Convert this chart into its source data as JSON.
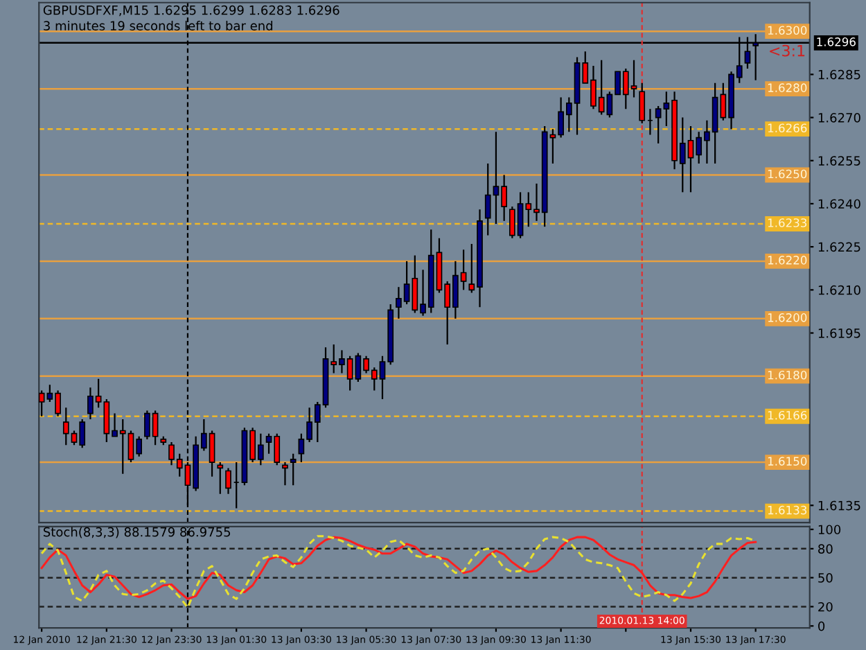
{
  "chart_data": [
    {
      "type": "candlestick",
      "title": "GBPUSDFXF,M15 1.6295 1.6299 1.6283 1.6296",
      "subtitle": "3 minutes 19 seconds left to bar end",
      "annotations": [
        "<3:1"
      ],
      "x": [
        "2010-01-12T19:30",
        "2010-01-12T19:45",
        "2010-01-12T20:00",
        "2010-01-12T20:15",
        "2010-01-12T20:30",
        "2010-01-12T20:45",
        "2010-01-12T21:00",
        "2010-01-12T21:15",
        "2010-01-12T21:30",
        "2010-01-12T21:45",
        "2010-01-12T22:00",
        "2010-01-12T22:15",
        "2010-01-12T22:30",
        "2010-01-12T22:45",
        "2010-01-12T23:00",
        "2010-01-12T23:15",
        "2010-01-12T23:30",
        "2010-01-12T23:45",
        "2010-01-13T00:00",
        "2010-01-13T00:15",
        "2010-01-13T00:30",
        "2010-01-13T00:45",
        "2010-01-13T01:00",
        "2010-01-13T01:15",
        "2010-01-13T01:30",
        "2010-01-13T01:45",
        "2010-01-13T02:00",
        "2010-01-13T02:15",
        "2010-01-13T02:30",
        "2010-01-13T02:45",
        "2010-01-13T03:00",
        "2010-01-13T03:15",
        "2010-01-13T03:30",
        "2010-01-13T03:45",
        "2010-01-13T04:00",
        "2010-01-13T04:15",
        "2010-01-13T04:30",
        "2010-01-13T04:45",
        "2010-01-13T05:00",
        "2010-01-13T05:15",
        "2010-01-13T05:30",
        "2010-01-13T05:45",
        "2010-01-13T06:00",
        "2010-01-13T06:15",
        "2010-01-13T06:30",
        "2010-01-13T06:45",
        "2010-01-13T07:00",
        "2010-01-13T07:15",
        "2010-01-13T07:30",
        "2010-01-13T07:45",
        "2010-01-13T08:00",
        "2010-01-13T08:15",
        "2010-01-13T08:30",
        "2010-01-13T08:45",
        "2010-01-13T09:00",
        "2010-01-13T09:15",
        "2010-01-13T09:30",
        "2010-01-13T09:45",
        "2010-01-13T10:00",
        "2010-01-13T10:15",
        "2010-01-13T10:30",
        "2010-01-13T10:45",
        "2010-01-13T11:00",
        "2010-01-13T11:15",
        "2010-01-13T11:30",
        "2010-01-13T11:45",
        "2010-01-13T12:00",
        "2010-01-13T12:15",
        "2010-01-13T12:30",
        "2010-01-13T12:45",
        "2010-01-13T13:00",
        "2010-01-13T13:15",
        "2010-01-13T13:30",
        "2010-01-13T13:45",
        "2010-01-13T14:00",
        "2010-01-13T14:15",
        "2010-01-13T14:30",
        "2010-01-13T14:45",
        "2010-01-13T15:00",
        "2010-01-13T15:15",
        "2010-01-13T15:30",
        "2010-01-13T15:45",
        "2010-01-13T16:00",
        "2010-01-13T16:15",
        "2010-01-13T16:30",
        "2010-01-13T16:45",
        "2010-01-13T17:00",
        "2010-01-13T17:15",
        "2010-01-13T17:30"
      ],
      "ohlc": [
        [
          1.6174,
          1.6175,
          1.6166,
          1.6171
        ],
        [
          1.6172,
          1.6177,
          1.6171,
          1.6174
        ],
        [
          1.6174,
          1.6175,
          1.6166,
          1.6167
        ],
        [
          1.6164,
          1.6169,
          1.6156,
          1.616
        ],
        [
          1.616,
          1.6161,
          1.6156,
          1.6157
        ],
        [
          1.6156,
          1.6165,
          1.6155,
          1.6164
        ],
        [
          1.6167,
          1.6176,
          1.6165,
          1.6173
        ],
        [
          1.6173,
          1.6179,
          1.6169,
          1.6171
        ],
        [
          1.6171,
          1.6172,
          1.6157,
          1.616
        ],
        [
          1.6159,
          1.6167,
          1.6159,
          1.6161
        ],
        [
          1.6161,
          1.6165,
          1.6146,
          1.616
        ],
        [
          1.616,
          1.6161,
          1.615,
          1.6151
        ],
        [
          1.6153,
          1.6159,
          1.6152,
          1.6158
        ],
        [
          1.6159,
          1.6168,
          1.6158,
          1.6167
        ],
        [
          1.6167,
          1.6168,
          1.6156,
          1.6159
        ],
        [
          1.6158,
          1.6159,
          1.6156,
          1.6157
        ],
        [
          1.6156,
          1.6157,
          1.6149,
          1.6151
        ],
        [
          1.6151,
          1.6153,
          1.6145,
          1.6148
        ],
        [
          1.6149,
          1.615,
          1.6135,
          1.6142
        ],
        [
          1.6141,
          1.6159,
          1.614,
          1.6156
        ],
        [
          1.6155,
          1.6165,
          1.6154,
          1.616
        ],
        [
          1.616,
          1.6161,
          1.6145,
          1.615
        ],
        [
          1.6149,
          1.615,
          1.6139,
          1.6148
        ],
        [
          1.6147,
          1.6148,
          1.6139,
          1.6141
        ],
        [
          1.6143,
          1.615,
          1.6134,
          1.6143
        ],
        [
          1.6143,
          1.6162,
          1.6142,
          1.6161
        ],
        [
          1.6161,
          1.6162,
          1.615,
          1.6151
        ],
        [
          1.6151,
          1.616,
          1.6149,
          1.6156
        ],
        [
          1.6157,
          1.616,
          1.6153,
          1.6159
        ],
        [
          1.6159,
          1.616,
          1.6149,
          1.615
        ],
        [
          1.6149,
          1.615,
          1.6142,
          1.6148
        ],
        [
          1.615,
          1.6153,
          1.6142,
          1.6151
        ],
        [
          1.6153,
          1.616,
          1.615,
          1.6158
        ],
        [
          1.6158,
          1.6169,
          1.6157,
          1.6164
        ],
        [
          1.6164,
          1.6171,
          1.6157,
          1.617
        ],
        [
          1.617,
          1.619,
          1.6169,
          1.6186
        ],
        [
          1.6185,
          1.6191,
          1.6181,
          1.6184
        ],
        [
          1.6184,
          1.6189,
          1.6181,
          1.6186
        ],
        [
          1.6186,
          1.6187,
          1.6175,
          1.6179
        ],
        [
          1.6179,
          1.6188,
          1.6178,
          1.6187
        ],
        [
          1.6186,
          1.6187,
          1.6181,
          1.6182
        ],
        [
          1.6182,
          1.6183,
          1.6175,
          1.6179
        ],
        [
          1.6179,
          1.6187,
          1.6172,
          1.6185
        ],
        [
          1.6185,
          1.6205,
          1.6184,
          1.6203
        ],
        [
          1.6204,
          1.6211,
          1.62,
          1.6207
        ],
        [
          1.6206,
          1.622,
          1.6205,
          1.6212
        ],
        [
          1.6214,
          1.6222,
          1.6202,
          1.6203
        ],
        [
          1.6202,
          1.6217,
          1.6201,
          1.6205
        ],
        [
          1.6204,
          1.6231,
          1.6202,
          1.6222
        ],
        [
          1.6223,
          1.6228,
          1.6209,
          1.621
        ],
        [
          1.6212,
          1.6213,
          1.6191,
          1.6204
        ],
        [
          1.6204,
          1.622,
          1.62,
          1.6215
        ],
        [
          1.6216,
          1.6224,
          1.621,
          1.6213
        ],
        [
          1.6212,
          1.6226,
          1.6209,
          1.621
        ],
        [
          1.6211,
          1.6238,
          1.6204,
          1.6234
        ],
        [
          1.6235,
          1.6254,
          1.6229,
          1.6243
        ],
        [
          1.6243,
          1.6265,
          1.6233,
          1.6246
        ],
        [
          1.6246,
          1.625,
          1.6234,
          1.6239
        ],
        [
          1.6238,
          1.6239,
          1.6228,
          1.6229
        ],
        [
          1.6229,
          1.6244,
          1.6228,
          1.624
        ],
        [
          1.624,
          1.6244,
          1.6232,
          1.6238
        ],
        [
          1.6238,
          1.6247,
          1.6234,
          1.6237
        ],
        [
          1.6237,
          1.6267,
          1.6232,
          1.6265
        ],
        [
          1.6264,
          1.6266,
          1.6254,
          1.6263
        ],
        [
          1.6264,
          1.6277,
          1.6263,
          1.6272
        ],
        [
          1.6271,
          1.6277,
          1.6265,
          1.6275
        ],
        [
          1.6275,
          1.6291,
          1.6264,
          1.6289
        ],
        [
          1.6289,
          1.6293,
          1.6282,
          1.6282
        ],
        [
          1.6283,
          1.6288,
          1.6273,
          1.6274
        ],
        [
          1.6277,
          1.629,
          1.6271,
          1.6272
        ],
        [
          1.6271,
          1.6279,
          1.627,
          1.6278
        ],
        [
          1.6278,
          1.6286,
          1.6278,
          1.6286
        ],
        [
          1.6286,
          1.6287,
          1.6273,
          1.6278
        ],
        [
          1.6281,
          1.629,
          1.6277,
          1.628
        ],
        [
          1.6279,
          1.6282,
          1.6268,
          1.6269
        ],
        [
          1.6269,
          1.6273,
          1.6264,
          1.6269
        ],
        [
          1.627,
          1.6274,
          1.6261,
          1.6273
        ],
        [
          1.6273,
          1.6279,
          1.6267,
          1.6275
        ],
        [
          1.6276,
          1.6279,
          1.6252,
          1.6255
        ],
        [
          1.6254,
          1.627,
          1.6244,
          1.6261
        ],
        [
          1.6262,
          1.6267,
          1.6244,
          1.6256
        ],
        [
          1.6257,
          1.6265,
          1.6254,
          1.6263
        ],
        [
          1.6262,
          1.6269,
          1.6254,
          1.6265
        ],
        [
          1.6265,
          1.6282,
          1.6254,
          1.6277
        ],
        [
          1.6278,
          1.6282,
          1.6269,
          1.627
        ],
        [
          1.627,
          1.6286,
          1.6266,
          1.6285
        ],
        [
          1.6284,
          1.6298,
          1.6282,
          1.6288
        ],
        [
          1.6289,
          1.6298,
          1.6287,
          1.6293
        ],
        [
          1.6295,
          1.6299,
          1.6283,
          1.6296
        ]
      ],
      "colors": [
        "#ff0000",
        "#000080",
        "#ff0000",
        "#ff0000",
        "#ff0000",
        "#000080",
        "#000080",
        "#ff0000",
        "#ff0000",
        "#000080",
        "#ff0000",
        "#ff0000",
        "#000080",
        "#000080",
        "#ff0000",
        "#ff0000",
        "#ff0000",
        "#ff0000",
        "#ff0000",
        "#000080",
        "#000080",
        "#ff0000",
        "#ff0000",
        "#ff0000",
        "#000000",
        "#000080",
        "#ff0000",
        "#000080",
        "#000080",
        "#ff0000",
        "#ff0000",
        "#000080",
        "#000080",
        "#000080",
        "#000080",
        "#000080",
        "#ff0000",
        "#000080",
        "#ff0000",
        "#000080",
        "#ff0000",
        "#ff0000",
        "#000080",
        "#000080",
        "#000080",
        "#000080",
        "#ff0000",
        "#000080",
        "#000080",
        "#ff0000",
        "#ff0000",
        "#000080",
        "#ff0000",
        "#ff0000",
        "#000080",
        "#000080",
        "#000080",
        "#ff0000",
        "#ff0000",
        "#000080",
        "#ff0000",
        "#ff0000",
        "#000080",
        "#ff0000",
        "#000080",
        "#000080",
        "#000080",
        "#ff0000",
        "#ff0000",
        "#ff0000",
        "#000080",
        "#000080",
        "#ff0000",
        "#ff0000",
        "#ff0000",
        "#000000",
        "#000080",
        "#000080",
        "#ff0000",
        "#000080",
        "#ff0000",
        "#000080",
        "#000080",
        "#000080",
        "#ff0000",
        "#000080",
        "#000080",
        "#000080",
        "#000080"
      ],
      "xlim": [
        "2010-01-12T19:25",
        "2010-01-13T19:10"
      ],
      "ylim": [
        1.6129,
        1.631
      ],
      "yticks": [
        1.6135,
        1.6195,
        {
          "value": 1.621,
          "label": "1.6210"
        },
        1.6225,
        {
          "value": 1.624,
          "label": "1.6240"
        },
        1.6255,
        {
          "value": 1.627,
          "label": "1.6270"
        },
        1.6285
      ],
      "tick_labels": "y",
      "ref_lines": [
        {
          "axis": "y",
          "value": 1.63,
          "label": "1.6300",
          "color": "#e8a040",
          "line_style": "solid"
        },
        {
          "axis": "y",
          "value": 1.6296,
          "label": "1.6296",
          "color": "#000000",
          "line_style": "solid"
        },
        {
          "axis": "y",
          "value": 1.628,
          "label": "1.6280",
          "color": "#e8a040",
          "line_style": "solid"
        },
        {
          "axis": "y",
          "value": 1.6266,
          "label": "1.6266",
          "color": "#f0b828",
          "line_style": "dashed"
        },
        {
          "axis": "y",
          "value": 1.625,
          "label": "1.6250",
          "color": "#e8a040",
          "line_style": "solid"
        },
        {
          "axis": "y",
          "value": 1.6233,
          "label": "1.6233",
          "color": "#f0b828",
          "line_style": "dashed"
        },
        {
          "axis": "y",
          "value": 1.622,
          "label": "1.6220",
          "color": "#e8a040",
          "line_style": "solid"
        },
        {
          "axis": "y",
          "value": 1.62,
          "label": "1.6200",
          "color": "#e8a040",
          "line_style": "solid"
        },
        {
          "axis": "y",
          "value": 1.618,
          "label": "1.6180",
          "color": "#e8a040",
          "line_style": "solid"
        },
        {
          "axis": "y",
          "value": 1.6166,
          "label": "1.6166",
          "color": "#f0b828",
          "line_style": "dashed"
        },
        {
          "axis": "y",
          "value": 1.615,
          "label": "1.6150",
          "color": "#e8a040",
          "line_style": "solid"
        },
        {
          "axis": "y",
          "value": 1.6133,
          "label": "1.6133",
          "color": "#f0b828",
          "line_style": "dashed"
        },
        {
          "axis": "x",
          "value": "2010-01-13T00:00",
          "color": "#000000",
          "line_style": "dashed"
        },
        {
          "axis": "x",
          "value": "2010-01-13T14:00",
          "color": "#e03030",
          "line_style": "dashed"
        }
      ]
    },
    {
      "type": "line",
      "title": "Stoch(8,3,3) 88.1579 86.9755",
      "x": [
        "2010-01-12T19:30",
        "2010-01-12T19:45",
        "2010-01-12T20:00",
        "2010-01-12T20:15",
        "2010-01-12T20:30",
        "2010-01-12T20:45",
        "2010-01-12T21:00",
        "2010-01-12T21:15",
        "2010-01-12T21:30",
        "2010-01-12T21:45",
        "2010-01-12T22:00",
        "2010-01-12T22:15",
        "2010-01-12T22:30",
        "2010-01-12T22:45",
        "2010-01-12T23:00",
        "2010-01-12T23:15",
        "2010-01-12T23:30",
        "2010-01-12T23:45",
        "2010-01-13T00:00",
        "2010-01-13T00:15",
        "2010-01-13T00:30",
        "2010-01-13T00:45",
        "2010-01-13T01:00",
        "2010-01-13T01:15",
        "2010-01-13T01:30",
        "2010-01-13T01:45",
        "2010-01-13T02:00",
        "2010-01-13T02:15",
        "2010-01-13T02:30",
        "2010-01-13T02:45",
        "2010-01-13T03:00",
        "2010-01-13T03:15",
        "2010-01-13T03:30",
        "2010-01-13T03:45",
        "2010-01-13T04:00",
        "2010-01-13T04:15",
        "2010-01-13T04:30",
        "2010-01-13T04:45",
        "2010-01-13T05:00",
        "2010-01-13T05:15",
        "2010-01-13T05:30",
        "2010-01-13T05:45",
        "2010-01-13T06:00",
        "2010-01-13T06:15",
        "2010-01-13T06:30",
        "2010-01-13T06:45",
        "2010-01-13T07:00",
        "2010-01-13T07:15",
        "2010-01-13T07:30",
        "2010-01-13T07:45",
        "2010-01-13T08:00",
        "2010-01-13T08:15",
        "2010-01-13T08:30",
        "2010-01-13T08:45",
        "2010-01-13T09:00",
        "2010-01-13T09:15",
        "2010-01-13T09:30",
        "2010-01-13T09:45",
        "2010-01-13T10:00",
        "2010-01-13T10:15",
        "2010-01-13T10:30",
        "2010-01-13T10:45",
        "2010-01-13T11:00",
        "2010-01-13T11:15",
        "2010-01-13T11:30",
        "2010-01-13T11:45",
        "2010-01-13T12:00",
        "2010-01-13T12:15",
        "2010-01-13T12:30",
        "2010-01-13T12:45",
        "2010-01-13T13:00",
        "2010-01-13T13:15",
        "2010-01-13T13:30",
        "2010-01-13T13:45",
        "2010-01-13T14:00",
        "2010-01-13T14:15",
        "2010-01-13T14:30",
        "2010-01-13T14:45",
        "2010-01-13T15:00",
        "2010-01-13T15:15",
        "2010-01-13T15:30",
        "2010-01-13T15:45",
        "2010-01-13T16:00",
        "2010-01-13T16:15",
        "2010-01-13T16:30",
        "2010-01-13T16:45",
        "2010-01-13T17:00",
        "2010-01-13T17:15",
        "2010-01-13T17:30"
      ],
      "series": [
        {
          "color": "#ff2020",
          "line_style": "solid",
          "values": [
            60,
            71,
            79,
            73,
            57,
            42,
            35,
            43,
            53,
            51,
            42,
            33,
            30,
            33,
            37,
            42,
            43,
            35,
            28,
            31,
            44,
            55,
            53,
            42,
            37,
            35,
            42,
            55,
            69,
            72,
            70,
            64,
            65,
            73,
            83,
            89,
            92,
            91,
            88,
            84,
            81,
            79,
            75,
            75,
            80,
            85,
            82,
            75,
            72,
            71,
            69,
            62,
            55,
            57,
            64,
            73,
            78,
            74,
            66,
            60,
            56,
            57,
            63,
            71,
            82,
            89,
            92,
            92,
            89,
            82,
            74,
            69,
            66,
            63,
            55,
            42,
            34,
            32,
            32,
            30,
            29,
            31,
            35,
            46,
            60,
            73,
            80,
            86,
            87
          ]
        },
        {
          "color": "#e8e030",
          "line_style": "dashed",
          "values": [
            75,
            85,
            78,
            55,
            30,
            26,
            37,
            53,
            57,
            42,
            33,
            32,
            33,
            37,
            44,
            47,
            39,
            30,
            19,
            39,
            57,
            62,
            48,
            33,
            28,
            39,
            55,
            69,
            72,
            73,
            66,
            61,
            71,
            85,
            93,
            93,
            91,
            88,
            83,
            81,
            79,
            71,
            78,
            87,
            89,
            82,
            73,
            71,
            73,
            71,
            62,
            55,
            57,
            69,
            78,
            80,
            71,
            60,
            56,
            57,
            66,
            80,
            90,
            92,
            91,
            87,
            78,
            69,
            66,
            65,
            63,
            60,
            46,
            34,
            30,
            32,
            35,
            32,
            26,
            33,
            44,
            64,
            78,
            85,
            85,
            91,
            90,
            91,
            88
          ]
        }
      ],
      "xlim": [
        "2010-01-12T19:25",
        "2010-01-13T19:10"
      ],
      "ylim": [
        -2,
        103
      ],
      "yticks": [
        0,
        20,
        50,
        80,
        100
      ],
      "xticks": [
        {
          "value": "2010-01-12T19:30",
          "label": "12 Jan 2010"
        },
        {
          "value": "2010-01-12T21:30",
          "label": "12 Jan 21:30"
        },
        {
          "value": "2010-01-12T23:30",
          "label": "12 Jan 23:30"
        },
        {
          "value": "2010-01-13T01:30",
          "label": "13 Jan 01:30"
        },
        {
          "value": "2010-01-13T03:30",
          "label": "13 Jan 03:30"
        },
        {
          "value": "2010-01-13T05:30",
          "label": "13 Jan 05:30"
        },
        {
          "value": "2010-01-13T07:30",
          "label": "13 Jan 07:30"
        },
        {
          "value": "2010-01-13T09:30",
          "label": "13 Jan 09:30"
        },
        {
          "value": "2010-01-13T11:30",
          "label": "13 Jan 11:30"
        },
        {
          "value": "2010-01-13T13:30",
          "label": null
        },
        {
          "value": "2010-01-13T15:30",
          "label": "13 Jan 15:30"
        },
        {
          "value": "2010-01-13T17:30",
          "label": "13 Jan 17:30"
        }
      ],
      "ref_lines": [
        {
          "axis": "y",
          "value": 80,
          "color": "#202020",
          "line_style": "dashed"
        },
        {
          "axis": "y",
          "value": 50,
          "color": "#202020",
          "line_style": "dashed"
        },
        {
          "axis": "y",
          "value": 20,
          "color": "#202020",
          "line_style": "dashed"
        },
        {
          "axis": "x",
          "value": "2010-01-13T00:00",
          "color": "#000000",
          "line_style": "dashed"
        },
        {
          "axis": "x",
          "value": "2010-01-13T14:00",
          "label": "2010.01.13 14:00",
          "color": "#e03030",
          "line_style": "dashed"
        }
      ]
    }
  ]
}
